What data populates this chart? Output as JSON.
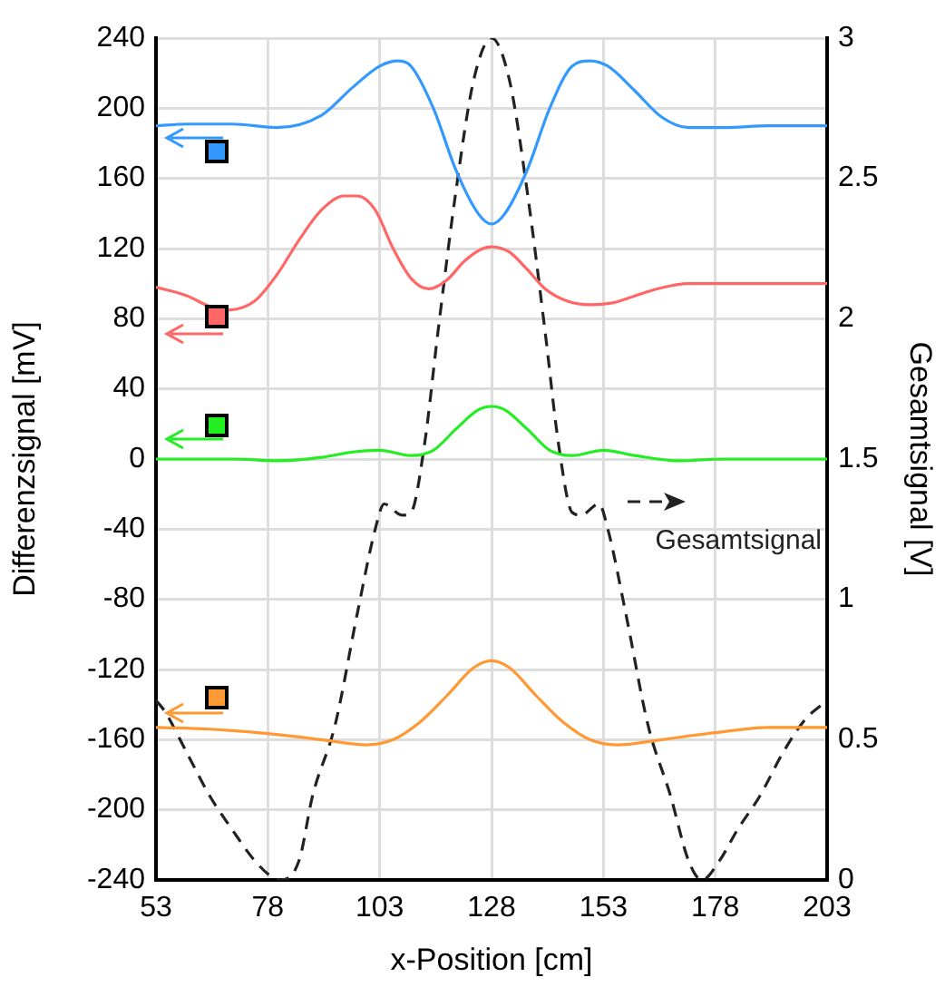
{
  "chart_data": {
    "type": "line",
    "xlabel": "x-Position [cm]",
    "ylabel": "Differenzsignal [mV]",
    "y2label": "Gesamtsignal [V]",
    "xlim": [
      53,
      203
    ],
    "xticks": [
      53,
      78,
      103,
      128,
      153,
      178,
      203
    ],
    "ylim": [
      -240,
      240
    ],
    "yticks": [
      -240,
      -200,
      -160,
      -120,
      -80,
      -40,
      0,
      40,
      80,
      120,
      160,
      200,
      240
    ],
    "y2lim": [
      0,
      3
    ],
    "y2ticks": [
      0,
      0.5,
      1,
      1.5,
      2,
      2.5,
      3
    ],
    "grid": true,
    "legend": "right",
    "marker": "none",
    "series": [
      {
        "color": "#3399ff",
        "x": [
          53,
          60,
          70,
          80,
          90,
          97,
          103,
          107,
          110,
          115,
          120,
          125,
          128,
          131,
          136,
          141,
          146,
          150,
          154,
          160,
          166,
          172,
          180,
          190,
          203
        ],
        "values": [
          190,
          191,
          191,
          189,
          196,
          212,
          224,
          227,
          224,
          200,
          165,
          140,
          134,
          140,
          165,
          200,
          224,
          227,
          224,
          210,
          195,
          189,
          189,
          190,
          190
        ]
      },
      {
        "color": "#ff6666",
        "x": [
          53,
          60,
          65,
          69,
          75,
          80,
          85,
          90,
          95,
          98,
          102,
          106,
          110,
          114,
          118,
          122,
          126,
          128,
          132,
          136,
          140,
          145,
          150,
          155,
          160,
          165,
          172,
          180,
          203
        ],
        "values": [
          98,
          93,
          87,
          85,
          90,
          105,
          125,
          142,
          150,
          150,
          142,
          120,
          103,
          97,
          102,
          113,
          120,
          121,
          118,
          108,
          97,
          90,
          88,
          89,
          93,
          97,
          100,
          100,
          100
        ]
      },
      {
        "color": "#22ee22",
        "x": [
          53,
          70,
          80,
          90,
          97,
          103,
          110,
          115,
          120,
          125,
          128,
          131,
          136,
          141,
          146,
          153,
          160,
          170,
          180,
          203
        ],
        "values": [
          0,
          0,
          -1,
          1,
          4,
          5,
          2,
          5,
          17,
          28,
          30,
          28,
          17,
          5,
          2,
          5,
          2,
          -1,
          0,
          0
        ]
      },
      {
        "color": "#ff9933",
        "x": [
          53,
          65,
          80,
          90,
          100,
          106,
          112,
          118,
          124,
          128,
          132,
          138,
          144,
          150,
          156,
          166,
          178,
          190,
          203
        ],
        "values": [
          -153,
          -154,
          -157,
          -160,
          -163,
          -160,
          -150,
          -135,
          -119,
          -115,
          -119,
          -135,
          -150,
          -160,
          -163,
          -160,
          -156,
          -153,
          -153
        ]
      },
      {
        "name": "Gesamtsignal",
        "color": "#222222",
        "axis": "y2",
        "line_style": "dashed",
        "x": [
          53,
          55,
          60,
          65,
          70,
          75,
          79,
          81,
          85,
          88,
          93,
          98,
          102,
          104,
          108,
          110,
          113,
          116,
          120,
          124,
          128,
          132,
          136,
          140,
          143,
          146,
          148,
          152,
          154,
          158,
          163,
          168,
          172,
          175,
          179,
          183,
          188,
          193,
          198,
          203
        ],
        "values": [
          0.64,
          0.6,
          0.45,
          0.3,
          0.18,
          0.07,
          0.01,
          0,
          0.07,
          0.3,
          0.55,
          0.95,
          1.25,
          1.34,
          1.3,
          1.31,
          1.55,
          1.95,
          2.45,
          2.85,
          3,
          2.85,
          2.45,
          1.95,
          1.55,
          1.31,
          1.3,
          1.34,
          1.25,
          0.95,
          0.55,
          0.3,
          0.07,
          0,
          0.07,
          0.18,
          0.3,
          0.45,
          0.57,
          0.64
        ]
      }
    ]
  }
}
